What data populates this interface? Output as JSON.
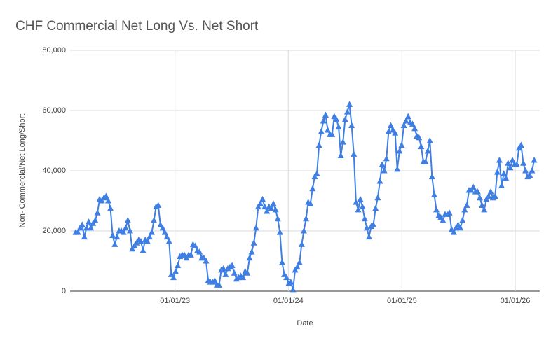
{
  "chart_data": {
    "type": "line",
    "title": "CHF Commercial Net Long Vs. Net Short",
    "x_label": "Date",
    "y_label": "Non- Commercial/Net Long/Short",
    "xlim": [
      "2022-01-28",
      "2026-03-21"
    ],
    "xticks": [
      {
        "value": "2023-01-01",
        "label": "01/01/23"
      },
      {
        "value": "2024-01-01",
        "label": "01/01/24"
      },
      {
        "value": "2025-01-01",
        "label": "01/01/25"
      },
      {
        "value": "2026-01-01",
        "label": "01/01/26"
      }
    ],
    "ylim": [
      0,
      80000
    ],
    "yticks": [
      0,
      {
        "value": 20000,
        "label": "20,000"
      },
      {
        "value": 40000,
        "label": "40,000"
      },
      {
        "value": 60000,
        "label": "60,000"
      },
      {
        "value": 80000,
        "label": "80,000"
      }
    ],
    "grid": true,
    "x": [
      "2022-02-15",
      "2022-02-22",
      "2022-03-01",
      "2022-03-08",
      "2022-03-15",
      "2022-03-22",
      "2022-03-29",
      "2022-04-05",
      "2022-04-12",
      "2022-04-19",
      "2022-04-26",
      "2022-05-03",
      "2022-05-10",
      "2022-05-17",
      "2022-05-24",
      "2022-05-31",
      "2022-06-07",
      "2022-06-14",
      "2022-06-21",
      "2022-06-28",
      "2022-07-05",
      "2022-07-12",
      "2022-07-19",
      "2022-07-26",
      "2022-08-02",
      "2022-08-09",
      "2022-08-16",
      "2022-08-23",
      "2022-08-30",
      "2022-09-06",
      "2022-09-13",
      "2022-09-20",
      "2022-09-27",
      "2022-10-04",
      "2022-10-11",
      "2022-10-18",
      "2022-10-25",
      "2022-11-01",
      "2022-11-08",
      "2022-11-15",
      "2022-11-22",
      "2022-11-29",
      "2022-12-06",
      "2022-12-13",
      "2022-12-20",
      "2022-12-27",
      "2023-01-03",
      "2023-01-10",
      "2023-01-17",
      "2023-01-24",
      "2023-01-31",
      "2023-02-07",
      "2023-02-14",
      "2023-02-21",
      "2023-02-28",
      "2023-03-07",
      "2023-03-14",
      "2023-03-21",
      "2023-03-28",
      "2023-04-04",
      "2023-04-11",
      "2023-04-18",
      "2023-04-25",
      "2023-05-02",
      "2023-05-09",
      "2023-05-16",
      "2023-05-23",
      "2023-05-30",
      "2023-06-06",
      "2023-06-13",
      "2023-06-20",
      "2023-06-27",
      "2023-07-04",
      "2023-07-11",
      "2023-07-18",
      "2023-07-25",
      "2023-08-01",
      "2023-08-08",
      "2023-08-15",
      "2023-08-22",
      "2023-08-29",
      "2023-09-05",
      "2023-09-12",
      "2023-09-19",
      "2023-09-26",
      "2023-10-03",
      "2023-10-10",
      "2023-10-17",
      "2023-10-24",
      "2023-10-31",
      "2023-11-07",
      "2023-11-14",
      "2023-11-21",
      "2023-11-28",
      "2023-12-05",
      "2023-12-12",
      "2023-12-19",
      "2023-12-26",
      "2024-01-02",
      "2024-01-09",
      "2024-01-16",
      "2024-01-23",
      "2024-01-30",
      "2024-02-06",
      "2024-02-13",
      "2024-02-20",
      "2024-02-27",
      "2024-03-05",
      "2024-03-12",
      "2024-03-19",
      "2024-03-26",
      "2024-04-02",
      "2024-04-09",
      "2024-04-16",
      "2024-04-23",
      "2024-04-30",
      "2024-05-07",
      "2024-05-14",
      "2024-05-21",
      "2024-05-28",
      "2024-06-04",
      "2024-06-11",
      "2024-06-18",
      "2024-06-25",
      "2024-07-02",
      "2024-07-09",
      "2024-07-16",
      "2024-07-23",
      "2024-07-30",
      "2024-08-06",
      "2024-08-13",
      "2024-08-20",
      "2024-08-27",
      "2024-09-03",
      "2024-09-10",
      "2024-09-17",
      "2024-09-24",
      "2024-10-01",
      "2024-10-08",
      "2024-10-15",
      "2024-10-22",
      "2024-10-29",
      "2024-11-05",
      "2024-11-12",
      "2024-11-19",
      "2024-11-26",
      "2024-12-03",
      "2024-12-10",
      "2024-12-17",
      "2024-12-24",
      "2024-12-31",
      "2025-01-07",
      "2025-01-14",
      "2025-01-21",
      "2025-01-28",
      "2025-02-04",
      "2025-02-11",
      "2025-02-18",
      "2025-02-25",
      "2025-03-04",
      "2025-03-11",
      "2025-03-18",
      "2025-03-25",
      "2025-04-01",
      "2025-04-08",
      "2025-04-15",
      "2025-04-22",
      "2025-04-29",
      "2025-05-06",
      "2025-05-13",
      "2025-05-20",
      "2025-05-27",
      "2025-06-03",
      "2025-06-10",
      "2025-06-17",
      "2025-06-24",
      "2025-07-01",
      "2025-07-08",
      "2025-07-15",
      "2025-07-22",
      "2025-07-29",
      "2025-08-05",
      "2025-08-12",
      "2025-08-19",
      "2025-08-26",
      "2025-09-02",
      "2025-09-09",
      "2025-09-16",
      "2025-09-23",
      "2025-09-30",
      "2025-10-07",
      "2025-10-14",
      "2025-10-21",
      "2025-10-28",
      "2025-11-04",
      "2025-11-11",
      "2025-11-18",
      "2025-11-25",
      "2025-12-02",
      "2025-12-09",
      "2025-12-16",
      "2025-12-23",
      "2025-12-30",
      "2026-01-06",
      "2026-01-13",
      "2026-01-20",
      "2026-01-27",
      "2026-02-03",
      "2026-02-10",
      "2026-02-17",
      "2026-02-24",
      "2026-03-03"
    ],
    "series": [
      {
        "color": "#3f7fe3",
        "values": [
          19500,
          19500,
          21000,
          22000,
          18000,
          21000,
          23000,
          21000,
          22500,
          23500,
          26000,
          30500,
          30000,
          31000,
          31500,
          30000,
          27500,
          18500,
          15500,
          18000,
          20000,
          20000,
          19500,
          21000,
          23500,
          20000,
          14000,
          15000,
          16000,
          17000,
          16500,
          13500,
          17000,
          16500,
          18000,
          19500,
          23500,
          28000,
          28500,
          22000,
          21000,
          19500,
          18000,
          16500,
          5500,
          4500,
          6500,
          8500,
          11500,
          12000,
          12000,
          11000,
          12000,
          12000,
          15500,
          15000,
          13500,
          13000,
          11000,
          11000,
          10000,
          3500,
          3000,
          3000,
          3500,
          2000,
          2000,
          7000,
          7500,
          5500,
          7500,
          8000,
          8500,
          6000,
          4000,
          4500,
          5000,
          4500,
          6500,
          6000,
          11000,
          13000,
          16000,
          21000,
          28000,
          29000,
          30500,
          28000,
          26500,
          28000,
          27500,
          29000,
          27000,
          24000,
          19500,
          9500,
          5500,
          4500,
          2500,
          3000,
          500,
          7000,
          8000,
          9500,
          15500,
          20000,
          24000,
          29500,
          29000,
          34000,
          38000,
          39000,
          48500,
          53000,
          56500,
          58500,
          53500,
          52000,
          52000,
          58000,
          57000,
          54500,
          45000,
          49500,
          57000,
          59500,
          62000,
          55000,
          45500,
          29500,
          27000,
          30500,
          28000,
          24000,
          21000,
          18000,
          21500,
          22000,
          27500,
          31000,
          36500,
          42000,
          40000,
          44000,
          53000,
          55000,
          53500,
          52500,
          40500,
          46500,
          48500,
          55000,
          56500,
          58000,
          56000,
          55500,
          54000,
          51500,
          51000,
          48000,
          43000,
          43000,
          46500,
          50000,
          38000,
          32000,
          27000,
          25000,
          24500,
          23500,
          25500,
          25500,
          26000,
          20500,
          19500,
          21000,
          22000,
          21000,
          23500,
          27000,
          28500,
          33500,
          33500,
          34500,
          33000,
          33000,
          31000,
          28500,
          27000,
          30500,
          31500,
          33000,
          31000,
          31500,
          39500,
          43500,
          35000,
          39000,
          37500,
          42500,
          41000,
          43500,
          42000,
          42000,
          47500,
          48500,
          42500,
          40000,
          38000,
          38500,
          40000,
          43500
        ]
      }
    ]
  }
}
